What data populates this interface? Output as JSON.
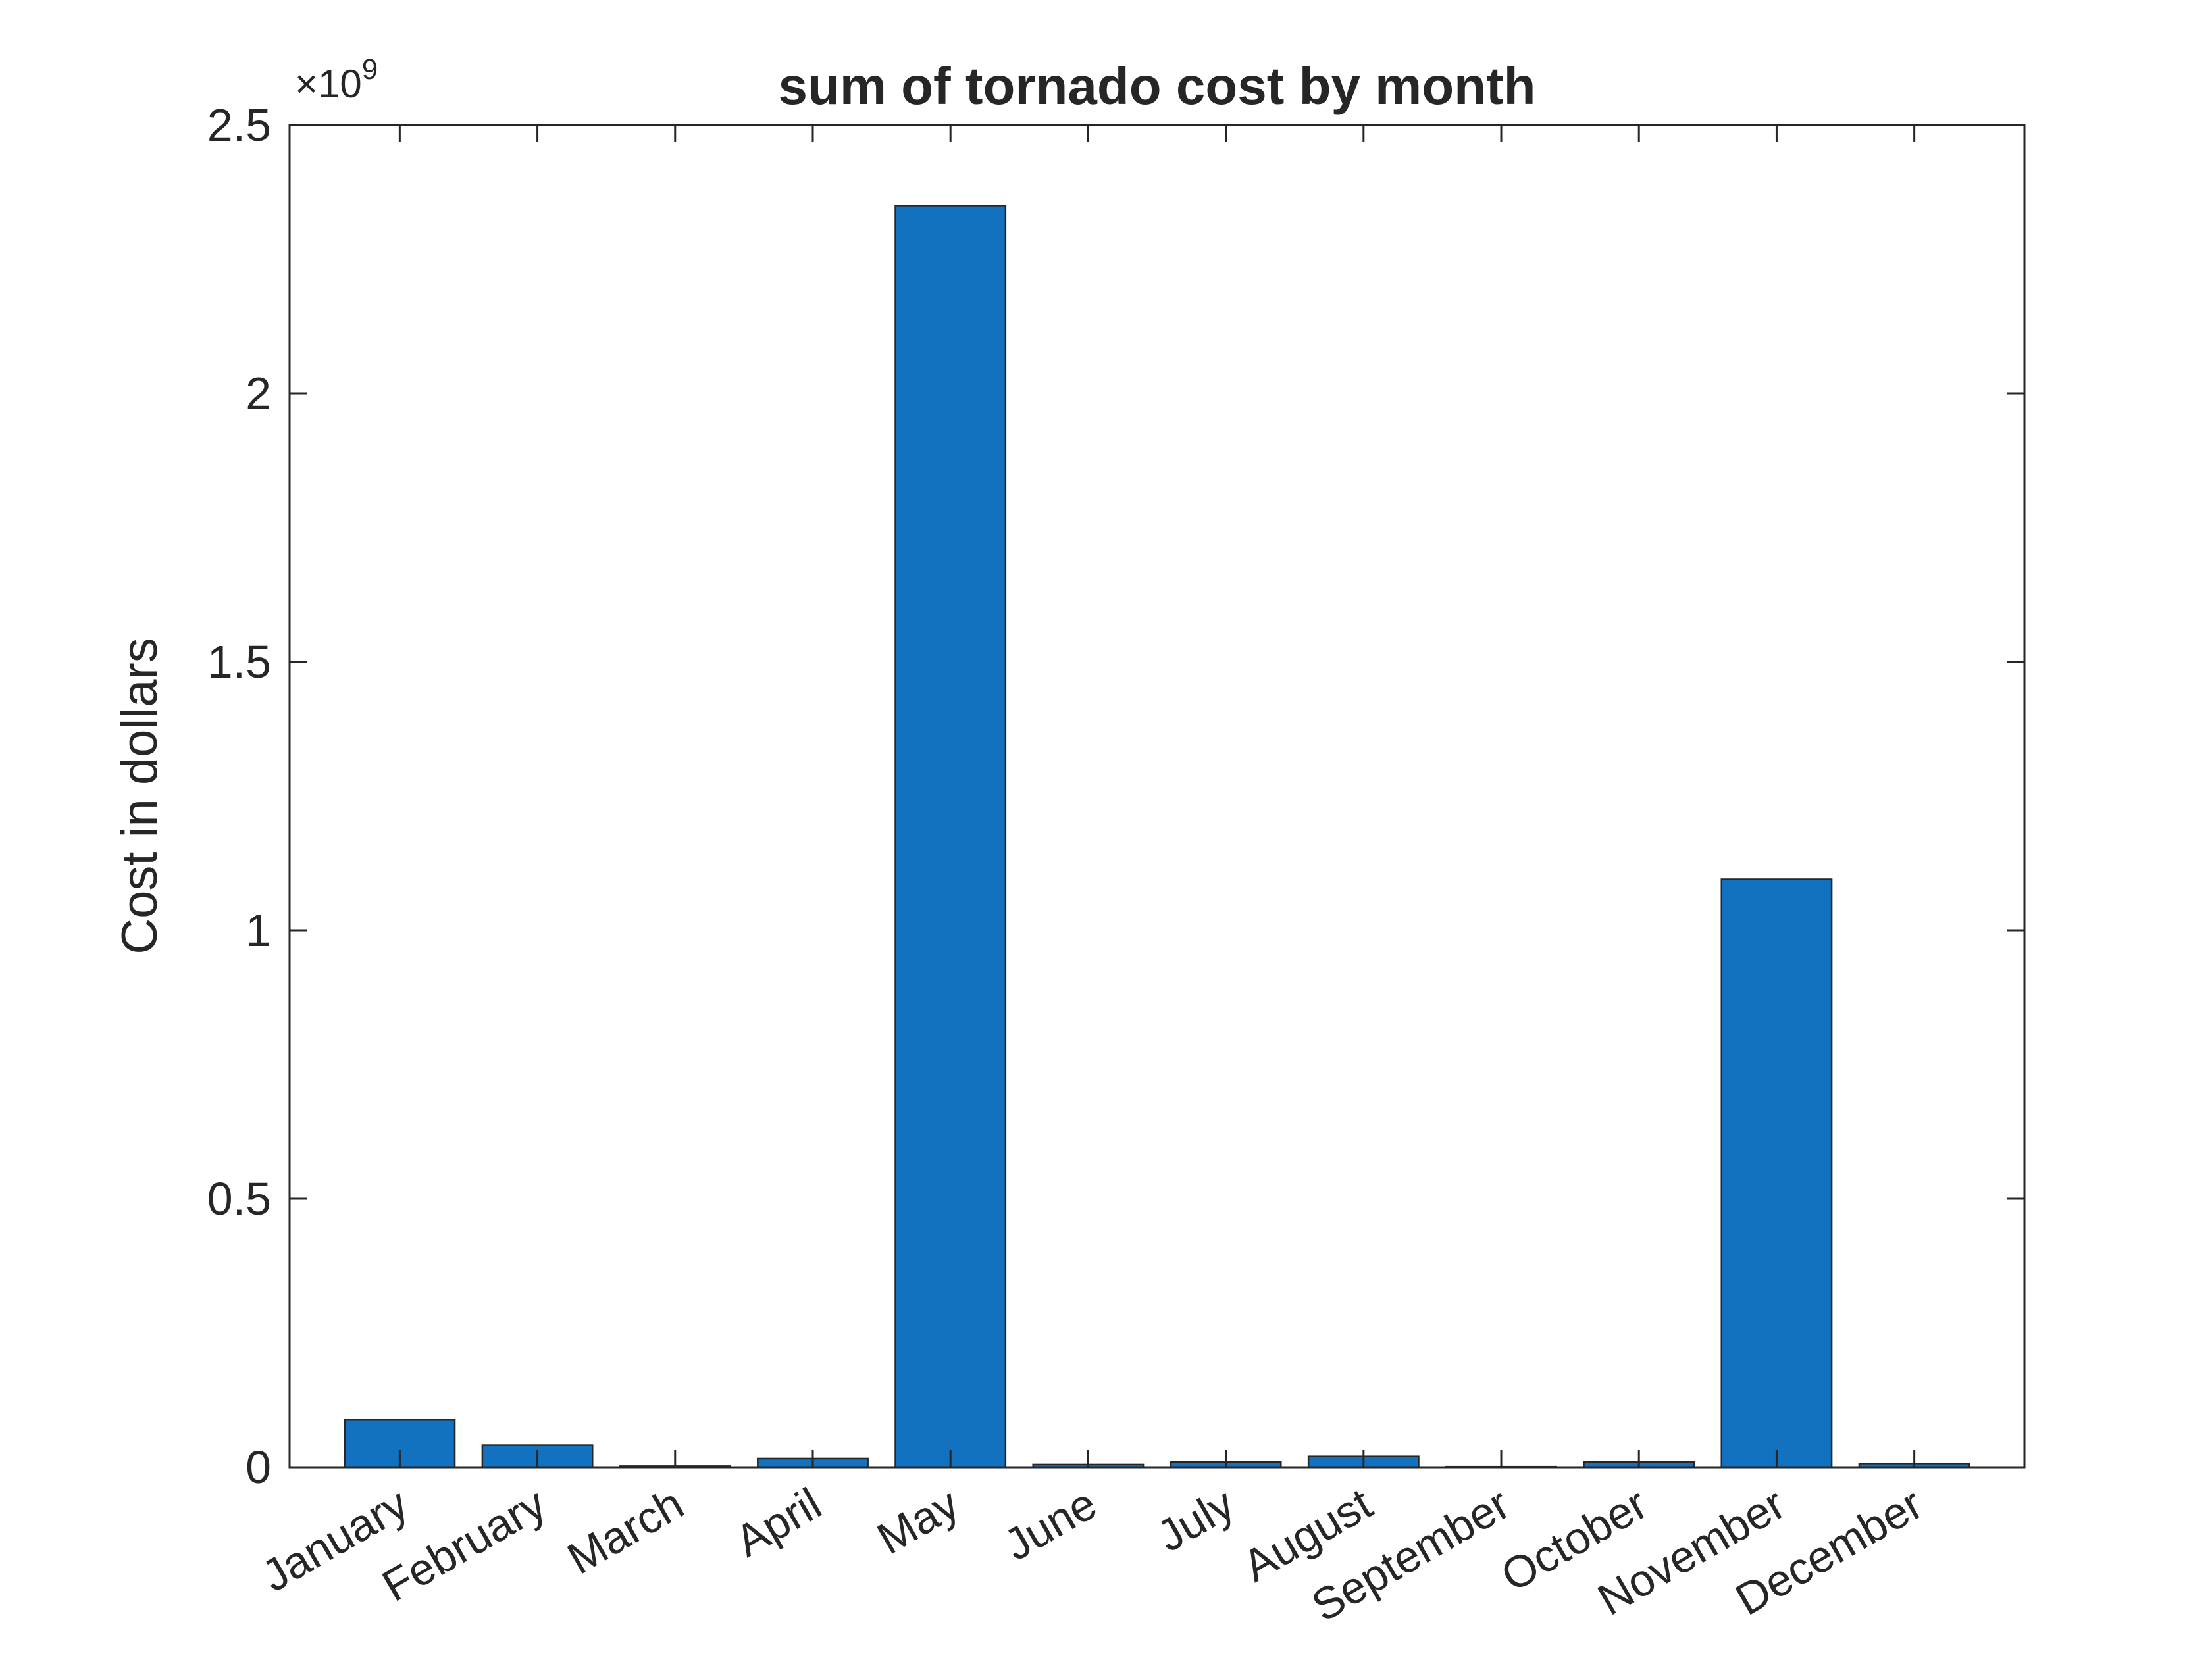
{
  "chart_data": {
    "type": "bar",
    "title": "sum of tornado cost by month",
    "xlabel": "",
    "ylabel": "Cost in dollars",
    "exponent_label": "×10",
    "exponent_power": "9",
    "categories": [
      "January",
      "February",
      "March",
      "April",
      "May",
      "June",
      "July",
      "August",
      "September",
      "October",
      "November",
      "December"
    ],
    "values": [
      88000000,
      41000000,
      2000000,
      16000000,
      2350000000,
      5000000,
      10000000,
      20000000,
      1000000,
      10000000,
      1095000000,
      7000000
    ],
    "ylim": [
      0,
      2500000000
    ],
    "yticks": [
      0,
      500000000,
      1000000000,
      1500000000,
      2000000000,
      2500000000
    ],
    "ytick_labels": [
      "0",
      "0.5",
      "1",
      "1.5",
      "2",
      "2.5"
    ],
    "grid": false,
    "bar_color": "#1372C0",
    "edge_color": "#262626",
    "axis_color": "#262626"
  }
}
